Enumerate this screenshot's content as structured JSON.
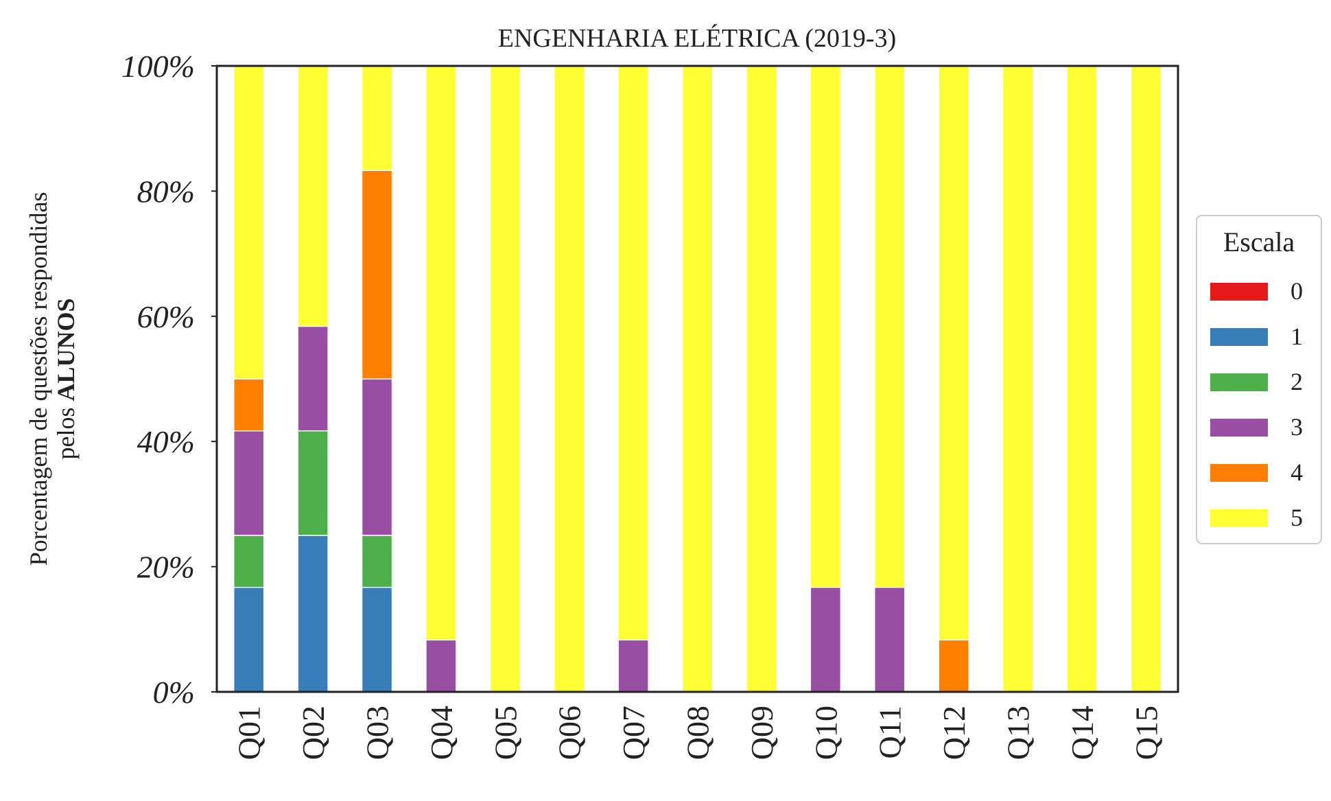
{
  "chart_data": {
    "type": "bar",
    "stacked": true,
    "title": "ENGENHARIA ELÉTRICA (2019-3)",
    "ylabel_line1": "Porcentagem de questões respondidas",
    "ylabel_line2_prefix": "pelos ",
    "ylabel_line2_bold": "ALUNOS",
    "xlabel": "",
    "ylim": [
      0,
      100
    ],
    "yticks": [
      0,
      20,
      40,
      60,
      80,
      100
    ],
    "ytick_labels": [
      "0%",
      "20%",
      "40%",
      "60%",
      "80%",
      "100%"
    ],
    "grid": false,
    "legend": {
      "title": "Escala",
      "placement": "center-right"
    },
    "categories": [
      "Q01",
      "Q02",
      "Q03",
      "Q04",
      "Q05",
      "Q06",
      "Q07",
      "Q08",
      "Q09",
      "Q10",
      "Q11",
      "Q12",
      "Q13",
      "Q14",
      "Q15"
    ],
    "series": [
      {
        "name": "0",
        "color": "#e41a1c",
        "values": [
          0,
          0,
          0,
          0,
          0,
          0,
          0,
          0,
          0,
          0,
          0,
          0,
          0,
          0,
          0
        ]
      },
      {
        "name": "1",
        "color": "#377eb8",
        "values": [
          16.7,
          25,
          16.7,
          0,
          0,
          0,
          0,
          0,
          0,
          0,
          0,
          0,
          0,
          0,
          0
        ]
      },
      {
        "name": "2",
        "color": "#4daf4a",
        "values": [
          8.3,
          16.7,
          8.3,
          0,
          0,
          0,
          0,
          0,
          0,
          0,
          0,
          0,
          0,
          0,
          0
        ]
      },
      {
        "name": "3",
        "color": "#984ea3",
        "values": [
          16.7,
          16.7,
          25,
          8.3,
          0,
          0,
          8.3,
          0,
          0,
          16.7,
          16.7,
          0,
          0,
          0,
          0
        ]
      },
      {
        "name": "4",
        "color": "#ff7f00",
        "values": [
          8.3,
          0,
          33.3,
          0,
          0,
          0,
          0,
          0,
          0,
          0,
          0,
          8.3,
          0,
          0,
          0
        ]
      },
      {
        "name": "5",
        "color": "#ffff33",
        "values": [
          50,
          41.7,
          16.7,
          91.7,
          100,
          100,
          91.7,
          100,
          100,
          83.3,
          83.3,
          91.7,
          100,
          100,
          100
        ]
      }
    ]
  }
}
